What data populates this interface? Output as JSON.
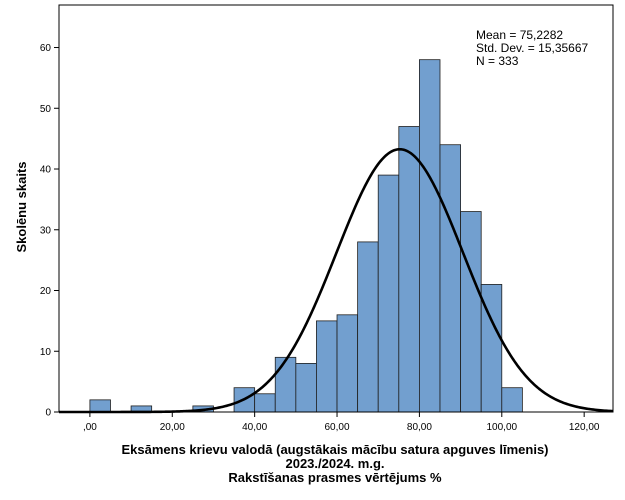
{
  "chart_data": {
    "type": "bar",
    "subtype": "histogram",
    "xlabel_lines": [
      "Eksāmens krievu valodā (augstākais mācību satura apguves līmenis)",
      "2023./2024. m.g.",
      "Rakstīšanas prasmes vērtējums %"
    ],
    "ylabel": "Skolēnu skaits",
    "xlim": [
      -7.5,
      127
    ],
    "ylim": [
      0,
      67
    ],
    "x_ticks": [
      0,
      20,
      40,
      60,
      80,
      100,
      120
    ],
    "x_tick_labels": [
      ",00",
      "20,00",
      "40,00",
      "60,00",
      "80,00",
      "100,00",
      "120,00"
    ],
    "y_ticks": [
      0,
      10,
      20,
      30,
      40,
      50,
      60
    ],
    "y_tick_labels": [
      "0",
      "10",
      "20",
      "30",
      "40",
      "50",
      "60"
    ],
    "bin_width": 5,
    "bins": [
      {
        "start": 0,
        "value": 2
      },
      {
        "start": 5,
        "value": 0
      },
      {
        "start": 10,
        "value": 1
      },
      {
        "start": 15,
        "value": 0
      },
      {
        "start": 20,
        "value": 0
      },
      {
        "start": 25,
        "value": 1
      },
      {
        "start": 30,
        "value": 0
      },
      {
        "start": 35,
        "value": 4
      },
      {
        "start": 40,
        "value": 3
      },
      {
        "start": 45,
        "value": 9
      },
      {
        "start": 50,
        "value": 8
      },
      {
        "start": 55,
        "value": 15
      },
      {
        "start": 60,
        "value": 16
      },
      {
        "start": 65,
        "value": 28
      },
      {
        "start": 70,
        "value": 39
      },
      {
        "start": 75,
        "value": 47
      },
      {
        "start": 80,
        "value": 58
      },
      {
        "start": 85,
        "value": 44
      },
      {
        "start": 90,
        "value": 33
      },
      {
        "start": 95,
        "value": 21
      },
      {
        "start": 100,
        "value": 4
      }
    ],
    "normal_curve": {
      "mean": 75.2282,
      "std": 15.35667,
      "n": 333
    },
    "stats_lines": [
      "Mean = 75,2282",
      "Std. Dev. = 15,35667",
      "N = 333"
    ],
    "bar_color": "#729fcf",
    "bar_edge_color": "#1f1f1f",
    "curve_color": "#000000",
    "grid": false,
    "legend": "none"
  }
}
